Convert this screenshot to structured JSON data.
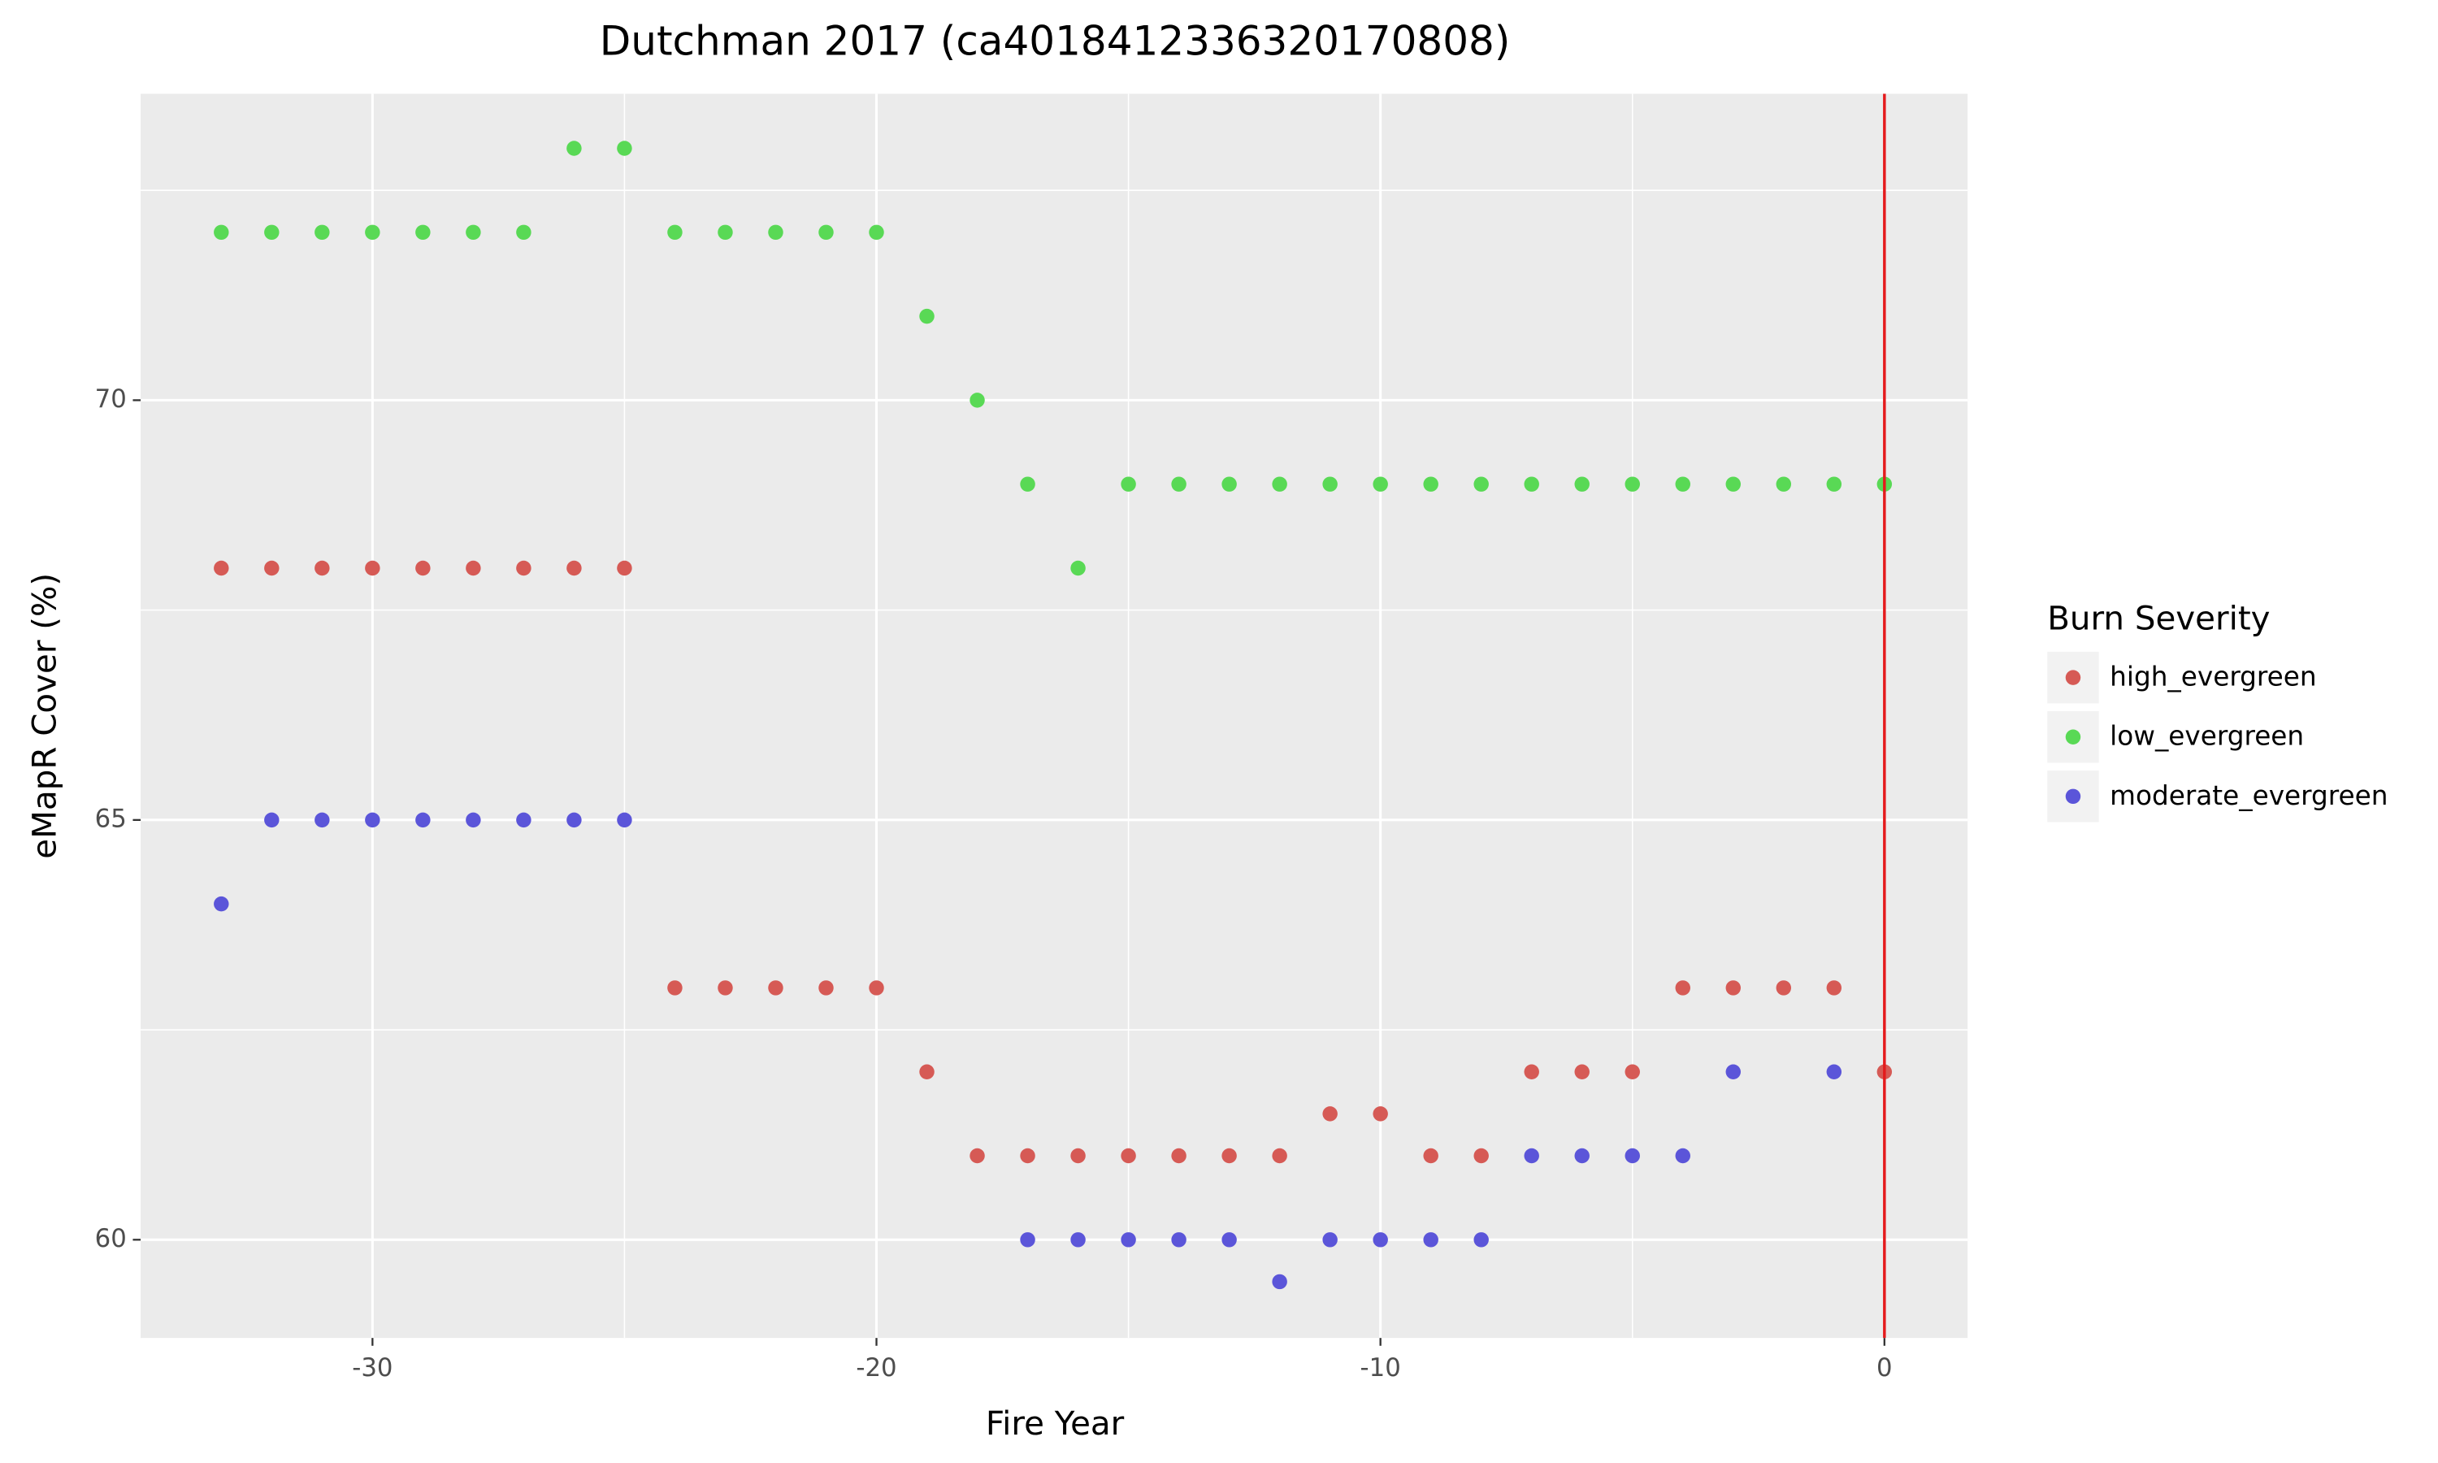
{
  "chart_data": {
    "type": "scatter",
    "title": "Dutchman 2017 (ca4018412336320170808)",
    "x_label": "Fire Year",
    "y_label": "eMapR Cover (%)",
    "x": [
      -33,
      -32,
      -31,
      -30,
      -29,
      -28,
      -27,
      -26,
      -25,
      -24,
      -23,
      -22,
      -21,
      -20,
      -19,
      -18,
      -17,
      -16,
      -15,
      -14,
      -13,
      -12,
      -11,
      -10,
      -9,
      -8,
      -7,
      -6,
      -5,
      -4,
      -3,
      -2,
      -1,
      0
    ],
    "series": [
      {
        "name": "high_evergreen",
        "color": "#d65a55",
        "values": [
          68,
          68,
          68,
          68,
          68,
          68,
          68,
          68,
          68,
          63,
          63,
          63,
          63,
          63,
          62,
          61,
          61,
          61,
          61,
          61,
          61,
          61,
          61.5,
          61.5,
          61,
          61,
          62,
          62,
          62,
          63,
          63,
          63,
          63,
          62
        ]
      },
      {
        "name": "low_evergreen",
        "color": "#59d955",
        "values": [
          72,
          72,
          72,
          72,
          72,
          72,
          72,
          73,
          73,
          72,
          72,
          72,
          72,
          72,
          71,
          70,
          69,
          68,
          69,
          69,
          69,
          69,
          69,
          69,
          69,
          69,
          69,
          69,
          69,
          69,
          69,
          69,
          69,
          69
        ]
      },
      {
        "name": "moderate_evergreen",
        "color": "#5b55d9",
        "values": [
          64,
          65,
          65,
          65,
          65,
          65,
          65,
          65,
          65,
          null,
          null,
          null,
          null,
          null,
          null,
          null,
          60,
          60,
          60,
          60,
          60,
          59.5,
          60,
          60,
          60,
          60,
          61,
          61,
          61,
          61,
          62,
          null,
          62,
          null
        ]
      }
    ],
    "legend_title": "Burn Severity",
    "legend": "right",
    "xlim": [
      -34.6,
      1.65
    ],
    "ylim": [
      58.83,
      73.65
    ],
    "xticks": [
      -30,
      -20,
      -10,
      0
    ],
    "yticks": [
      60,
      65,
      70
    ],
    "x_minor_grid": [
      -25,
      -15,
      -5
    ],
    "y_minor_grid": [
      62.5,
      67.5,
      72.5
    ],
    "grid": true,
    "vline": {
      "x": 0,
      "color": "#e41a1c"
    }
  }
}
